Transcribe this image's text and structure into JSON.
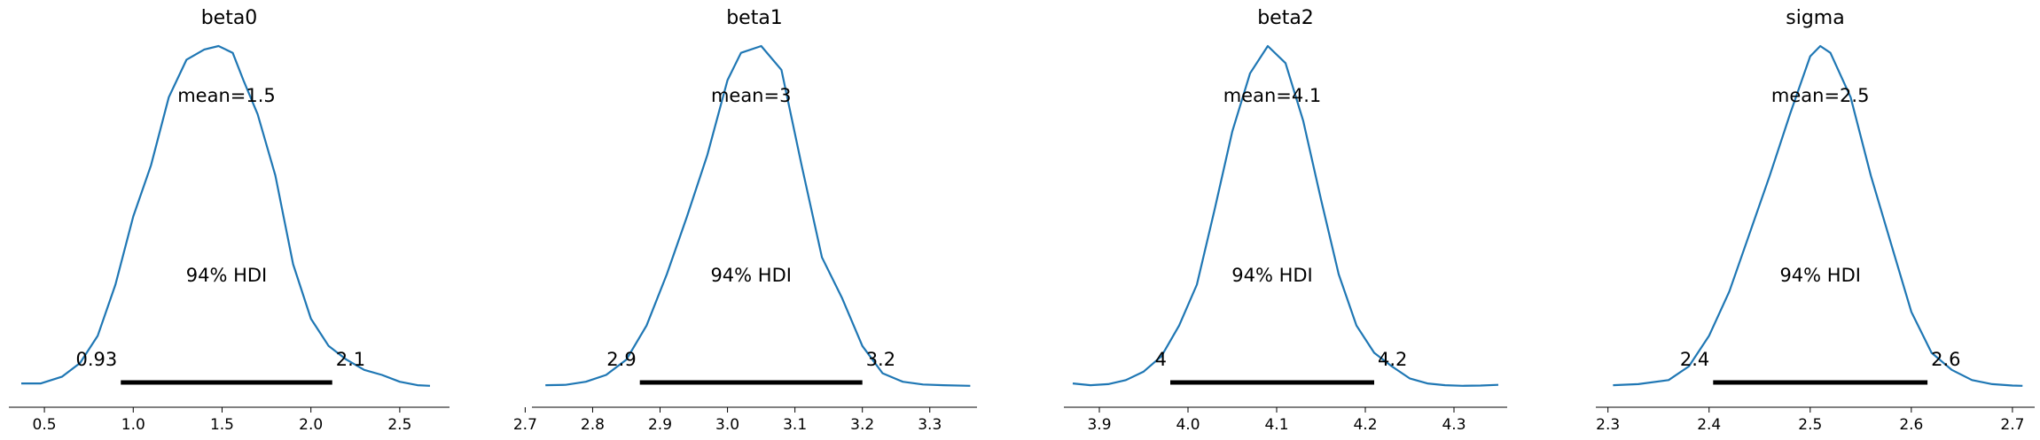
{
  "chart_data": [
    {
      "type": "line",
      "title": "beta0",
      "xlim": [
        0.3,
        2.78
      ],
      "xticks": [
        0.5,
        1.0,
        1.5,
        2.0,
        2.5
      ],
      "xtick_labels": [
        "0.5",
        "1.0",
        "1.5",
        "2.0",
        "2.5"
      ],
      "mean_label": "mean=1.5",
      "hdi_label": "94% HDI",
      "hdi": [
        0.93,
        2.12
      ],
      "hdi_low_label": "0.93",
      "hdi_high_label": "2.1",
      "color": "#1f77b4",
      "density": {
        "x": [
          0.37,
          0.48,
          0.6,
          0.7,
          0.8,
          0.9,
          1.0,
          1.1,
          1.2,
          1.3,
          1.4,
          1.48,
          1.56,
          1.62,
          1.7,
          1.8,
          1.9,
          2.0,
          2.1,
          2.2,
          2.3,
          2.4,
          2.5,
          2.6,
          2.67
        ],
        "y": [
          0.01,
          0.01,
          0.03,
          0.07,
          0.15,
          0.3,
          0.5,
          0.65,
          0.85,
          0.96,
          0.99,
          1.0,
          0.98,
          0.9,
          0.8,
          0.62,
          0.36,
          0.2,
          0.12,
          0.08,
          0.05,
          0.035,
          0.015,
          0.005,
          0.003
        ]
      }
    },
    {
      "type": "line",
      "title": "beta1",
      "xlim": [
        2.71,
        3.37
      ],
      "xticks": [
        2.7,
        2.8,
        2.9,
        3.0,
        3.1,
        3.2,
        3.3
      ],
      "xtick_labels": [
        "2.7",
        "2.8",
        "2.9",
        "3.0",
        "3.1",
        "3.2",
        "3.3"
      ],
      "mean_label": "mean=3",
      "hdi_label": "94% HDI",
      "hdi": [
        2.87,
        3.2
      ],
      "hdi_low_label": "2.9",
      "hdi_high_label": "3.2",
      "color": "#1f77b4",
      "density": {
        "x": [
          2.73,
          2.76,
          2.79,
          2.82,
          2.85,
          2.88,
          2.91,
          2.94,
          2.97,
          3.0,
          3.02,
          3.05,
          3.08,
          3.11,
          3.14,
          3.17,
          3.2,
          3.23,
          3.26,
          3.29,
          3.32,
          3.36
        ],
        "y": [
          0.005,
          0.006,
          0.015,
          0.035,
          0.08,
          0.18,
          0.33,
          0.5,
          0.68,
          0.9,
          0.98,
          1.0,
          0.93,
          0.65,
          0.38,
          0.26,
          0.12,
          0.04,
          0.015,
          0.007,
          0.005,
          0.003
        ]
      }
    },
    {
      "type": "line",
      "title": "beta2",
      "xlim": [
        3.86,
        4.36
      ],
      "xticks": [
        3.9,
        4.0,
        4.1,
        4.2,
        4.3
      ],
      "xtick_labels": [
        "3.9",
        "4.0",
        "4.1",
        "4.2",
        "4.3"
      ],
      "mean_label": "mean=4.1",
      "hdi_label": "94% HDI",
      "hdi": [
        3.98,
        4.21
      ],
      "hdi_low_label": "4",
      "hdi_high_label": "4.2",
      "color": "#1f77b4",
      "density": {
        "x": [
          3.87,
          3.89,
          3.91,
          3.93,
          3.95,
          3.97,
          3.99,
          4.01,
          4.03,
          4.05,
          4.07,
          4.09,
          4.11,
          4.13,
          4.15,
          4.17,
          4.19,
          4.21,
          4.23,
          4.25,
          4.27,
          4.29,
          4.31,
          4.33,
          4.35
        ],
        "y": [
          0.01,
          0.005,
          0.008,
          0.02,
          0.045,
          0.09,
          0.18,
          0.3,
          0.52,
          0.75,
          0.92,
          1.0,
          0.95,
          0.78,
          0.55,
          0.33,
          0.18,
          0.1,
          0.06,
          0.025,
          0.01,
          0.005,
          0.003,
          0.004,
          0.006
        ]
      }
    },
    {
      "type": "line",
      "title": "sigma",
      "xlim": [
        2.288,
        2.722
      ],
      "xticks": [
        2.3,
        2.4,
        2.5,
        2.6,
        2.7
      ],
      "xtick_labels": [
        "2.3",
        "2.4",
        "2.5",
        "2.6",
        "2.7"
      ],
      "mean_label": "mean=2.5",
      "hdi_label": "94% HDI",
      "hdi": [
        2.404,
        2.616
      ],
      "hdi_low_label": "2.4",
      "hdi_high_label": "2.6",
      "color": "#1f77b4",
      "density": {
        "x": [
          2.305,
          2.33,
          2.36,
          2.38,
          2.4,
          2.42,
          2.44,
          2.46,
          2.48,
          2.5,
          2.51,
          2.52,
          2.54,
          2.56,
          2.58,
          2.6,
          2.62,
          2.64,
          2.66,
          2.68,
          2.7,
          2.71
        ],
        "y": [
          0.005,
          0.008,
          0.02,
          0.06,
          0.15,
          0.28,
          0.45,
          0.62,
          0.8,
          0.97,
          1.0,
          0.98,
          0.85,
          0.62,
          0.42,
          0.22,
          0.1,
          0.05,
          0.02,
          0.008,
          0.004,
          0.003
        ]
      }
    }
  ]
}
